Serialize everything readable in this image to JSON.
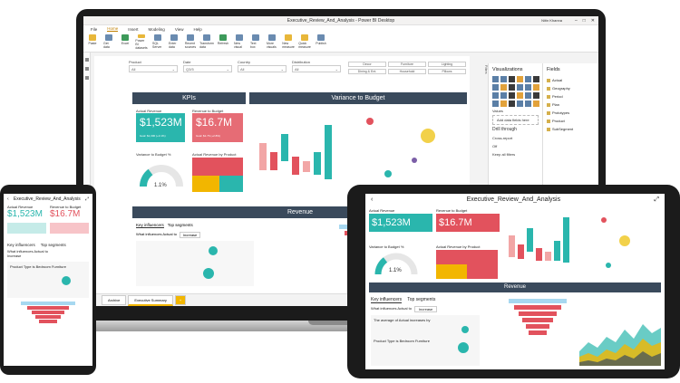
{
  "desktop": {
    "window_title": "Executive_Review_And_Analysis - Power BI Desktop",
    "user": "Nitin Khanna",
    "menu": [
      "File",
      "Home",
      "Insert",
      "Modeling",
      "View",
      "Help"
    ],
    "ribbon_buttons": [
      "Paste",
      "Get data",
      "Excel",
      "Power BI datasets",
      "SQL Server",
      "Enter data",
      "Recent sources",
      "Transform data",
      "Refresh",
      "New visual",
      "Text box",
      "More visuals",
      "New measure",
      "Quick measure",
      "Publish"
    ],
    "slicers": [
      {
        "label": "Product",
        "value": "All"
      },
      {
        "label": "Date",
        "value": "Q3/5"
      },
      {
        "label": "Country",
        "value": "All"
      },
      {
        "label": "Distribution",
        "value": "All"
      }
    ],
    "chips": [
      "Decor",
      "Furniture",
      "Lighting",
      "Dining & Ent.",
      "Household",
      "Pillows"
    ],
    "kpis_title": "KPIs",
    "variance_title": "Variance to Budget",
    "revenue_title": "Revenue",
    "actual_revenue": {
      "label": "Actual Revenue",
      "value": "$1,523M",
      "sub": "Goal: $1,300 (+3.1%)"
    },
    "revenue_budget": {
      "label": "Revenue to Budget",
      "value": "$16.7M",
      "sub": "Goal: $1.76 (+2.8%)"
    },
    "variance_pct": {
      "label": "Variance to Budget %",
      "value": "1.1%",
      "min": "0.0%",
      "max": "5.0%"
    },
    "actual_by_product": "Actual Revenue by Product",
    "key_influencers": "Key influencers",
    "top_segments": "Top segments",
    "influences_q": "What influences Actual to",
    "influences_val": "Increase",
    "tabs": [
      "Archive",
      "Executive Summary",
      "+"
    ],
    "visualizations": "Visualizations",
    "fields": "Fields",
    "field_list": [
      "Actual",
      "Geography",
      "Period",
      "Plan",
      "Prototypes",
      "Product",
      "SubSegment"
    ],
    "values_label": "Values",
    "add_fields": "Add data fields here",
    "drill_through": "Drill through",
    "cross_report": "Cross-report",
    "off": "Off",
    "keep_filters": "Keep all filters",
    "filters": "Filters"
  },
  "phone": {
    "title": "Executive_Review_And_Analysis",
    "actual_revenue": {
      "label": "Actual Revenue",
      "value": "$1,523M"
    },
    "revenue_budget": {
      "label": "Revenue to Budget",
      "value": "$16.7M"
    },
    "key_influencers": "Key influencers",
    "top_segments": "Top segments",
    "question": "What influences Actual to",
    "question2": "Increase",
    "influencer": "Product Type is Bedroom Furniture",
    "increase": "The average of Actual increases by"
  },
  "tablet": {
    "title": "Executive_Review_And_Analysis",
    "actual_revenue": {
      "label": "Actual Revenue",
      "value": "$1,523M"
    },
    "revenue_budget": {
      "label": "Revenue to Budget",
      "value": "$16.7M"
    },
    "variance_pct": {
      "label": "Variance to Budget %",
      "value": "1.1%"
    },
    "actual_by_product": "Actual Revenue by Product",
    "revenue_title": "Revenue",
    "key_influencers": "Key influencers",
    "top_segments": "Top segments",
    "question": "What influences Actual to",
    "question_value": "Increase",
    "influencer": "Product Type is Bedroom Furniture",
    "increase": "The average of Actual increases by"
  }
}
